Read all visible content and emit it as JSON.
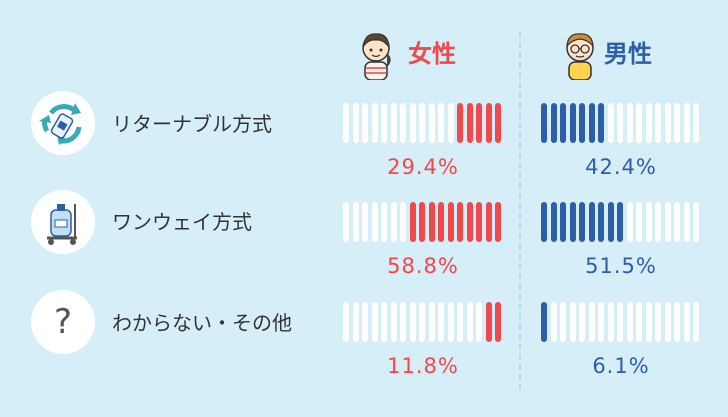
{
  "chart_data": {
    "type": "bar",
    "categories": [
      "リターナブル方式",
      "ワンウェイ方式",
      "わからない・その他"
    ],
    "series": [
      {
        "name": "女性",
        "color": "#f0484b",
        "values": [
          29.4,
          58.8,
          11.8
        ],
        "labels": [
          "29.4%",
          "58.8%",
          "11.8%"
        ]
      },
      {
        "name": "男性",
        "color": "#2d5ea6",
        "values": [
          42.4,
          51.5,
          6.1
        ],
        "labels": [
          "42.4%",
          "51.5%",
          "6.1%"
        ]
      }
    ],
    "ylim": [
      0,
      100
    ],
    "segments": 17
  },
  "category_icons": [
    "recycle-bottle-icon",
    "water-jug-cart-icon",
    "question-icon"
  ],
  "icons": {
    "female": "girl-avatar-icon",
    "male": "boy-avatar-icon",
    "question_glyph": "?"
  },
  "colors": {
    "background": "#d6eef7",
    "empty_segment": "#ffffff",
    "female": "#f0484b",
    "male": "#2d5ea6"
  }
}
